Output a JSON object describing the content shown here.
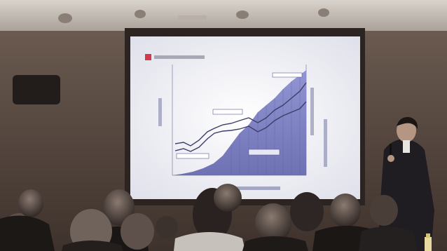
{
  "scene": {
    "description_labels": {
      "slide_title": ""
    },
    "colors": {
      "wall": "#5a4a40",
      "ceiling": "#cfc9c2",
      "screen": "#f3f3f7",
      "area_fill": "#7c7fc0",
      "line_dark": "#3a3f6a",
      "title_marker": "#d23a4a"
    }
  }
}
